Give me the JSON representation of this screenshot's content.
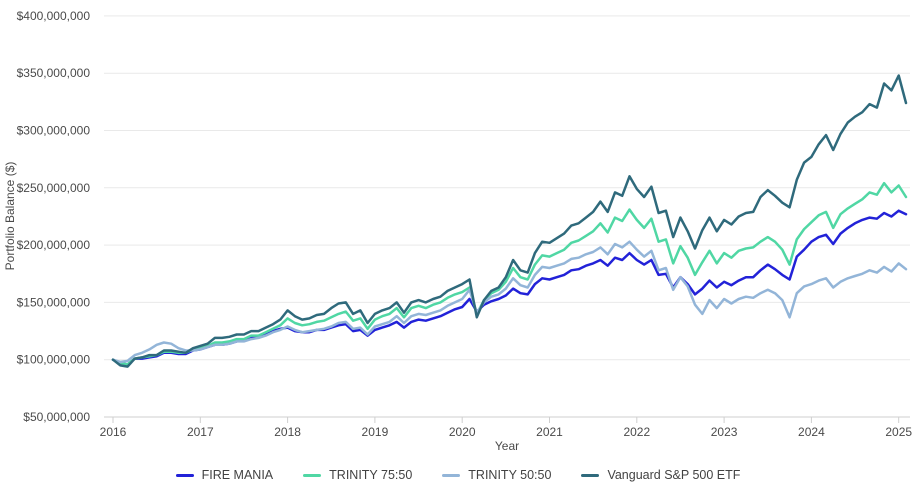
{
  "chart_data": {
    "type": "line",
    "title": "",
    "xlabel": "Year",
    "ylabel": "Portfolio Balance ($)",
    "grid": true,
    "legend_position": "bottom",
    "x_start_year": 2016,
    "x_step_months": 1,
    "x_ticks": [
      2016,
      2017,
      2018,
      2019,
      2020,
      2021,
      2022,
      2023,
      2024,
      2025
    ],
    "x_tick_labels": [
      "2016",
      "2017",
      "2018",
      "2019",
      "2020",
      "2021",
      "2022",
      "2023",
      "2024",
      "2025"
    ],
    "y_ticks_millions": [
      50,
      100,
      150,
      200,
      250,
      300,
      350,
      400
    ],
    "y_tick_labels": [
      "$50,000,000",
      "$100,000,000",
      "$150,000,000",
      "$200,000,000",
      "$250,000,000",
      "$300,000,000",
      "$350,000,000",
      "$400,000,000"
    ],
    "ylim_millions": [
      50,
      400
    ],
    "series": [
      {
        "name": "FIRE MANIA",
        "color": "#2222d8",
        "values_millions": [
          100,
          97,
          96,
          101,
          101,
          102,
          103,
          106,
          106,
          105,
          105,
          108,
          109,
          111,
          113,
          113,
          114,
          116,
          117,
          119,
          120,
          122,
          125,
          127,
          128,
          125,
          124,
          124,
          126,
          126,
          128,
          130,
          131,
          125,
          126,
          121,
          126,
          128,
          130,
          133,
          128,
          133,
          135,
          134,
          136,
          138,
          141,
          144,
          146,
          153,
          142,
          148,
          151,
          153,
          156,
          162,
          158,
          157,
          166,
          171,
          170,
          172,
          174,
          178,
          179,
          182,
          184,
          187,
          182,
          189,
          187,
          193,
          187,
          183,
          187,
          174,
          175,
          163,
          172,
          166,
          157,
          162,
          169,
          163,
          168,
          165,
          169,
          172,
          172,
          178,
          183,
          179,
          174,
          170,
          190,
          196,
          203,
          207,
          209,
          201,
          210,
          215,
          219,
          222,
          224,
          223,
          228,
          225,
          230,
          227
        ]
      },
      {
        "name": "TRINITY 75:50",
        "color": "#50d7a4",
        "values_millions": [
          100,
          97,
          96,
          101,
          102,
          103,
          104,
          107,
          107,
          106,
          106,
          109,
          110,
          112,
          115,
          115,
          116,
          118,
          118,
          121,
          121,
          124,
          127,
          130,
          136,
          132,
          130,
          131,
          133,
          134,
          137,
          140,
          142,
          134,
          136,
          127,
          135,
          138,
          140,
          145,
          137,
          145,
          147,
          145,
          148,
          150,
          154,
          157,
          159,
          163,
          140,
          152,
          158,
          161,
          168,
          180,
          172,
          170,
          183,
          191,
          190,
          193,
          196,
          202,
          204,
          208,
          212,
          219,
          211,
          224,
          221,
          231,
          222,
          215,
          223,
          203,
          205,
          184,
          199,
          189,
          174,
          185,
          195,
          184,
          193,
          189,
          195,
          197,
          198,
          203,
          207,
          203,
          196,
          183,
          205,
          214,
          220,
          226,
          229,
          215,
          227,
          232,
          236,
          240,
          246,
          244,
          254,
          246,
          252,
          242
        ]
      },
      {
        "name": "TRINITY 50:50",
        "color": "#93b5d8",
        "values_millions": [
          100,
          98,
          99,
          104,
          106,
          109,
          113,
          115,
          114,
          110,
          108,
          108,
          109,
          111,
          113,
          113,
          114,
          116,
          116,
          118,
          119,
          121,
          124,
          126,
          129,
          126,
          124,
          125,
          126,
          127,
          129,
          132,
          133,
          127,
          128,
          122,
          129,
          131,
          133,
          138,
          132,
          138,
          140,
          139,
          141,
          143,
          147,
          150,
          153,
          161,
          141,
          150,
          155,
          157,
          162,
          171,
          165,
          163,
          174,
          181,
          180,
          182,
          184,
          188,
          189,
          192,
          194,
          198,
          192,
          201,
          198,
          203,
          196,
          190,
          195,
          178,
          180,
          161,
          172,
          164,
          148,
          140,
          152,
          145,
          153,
          149,
          153,
          155,
          154,
          158,
          161,
          158,
          152,
          137,
          158,
          164,
          166,
          169,
          171,
          163,
          168,
          171,
          173,
          175,
          178,
          176,
          181,
          177,
          184,
          179
        ]
      },
      {
        "name": "Vanguard S&P 500 ETF",
        "color": "#2f6a7c",
        "values_millions": [
          100,
          95,
          94,
          101,
          102,
          104,
          104,
          108,
          108,
          107,
          106,
          110,
          112,
          114,
          119,
          119,
          120,
          122,
          122,
          125,
          125,
          128,
          131,
          135,
          143,
          138,
          135,
          136,
          139,
          140,
          145,
          149,
          150,
          140,
          143,
          132,
          140,
          143,
          145,
          150,
          141,
          150,
          152,
          150,
          153,
          155,
          160,
          163,
          166,
          170,
          137,
          152,
          160,
          163,
          172,
          187,
          178,
          176,
          193,
          203,
          202,
          206,
          210,
          217,
          219,
          224,
          229,
          238,
          229,
          246,
          243,
          260,
          249,
          242,
          251,
          228,
          230,
          207,
          224,
          212,
          197,
          213,
          224,
          212,
          222,
          218,
          225,
          228,
          229,
          242,
          248,
          243,
          237,
          233,
          257,
          272,
          277,
          288,
          296,
          283,
          297,
          307,
          312,
          316,
          323,
          320,
          341,
          335,
          348,
          324
        ]
      }
    ],
    "colors": {
      "gridline": "#e9e9e9",
      "axis_line": "#cfcfcf",
      "tick_text": "#4a4a4a",
      "legend_text": "#424242",
      "background": "#ffffff"
    }
  }
}
